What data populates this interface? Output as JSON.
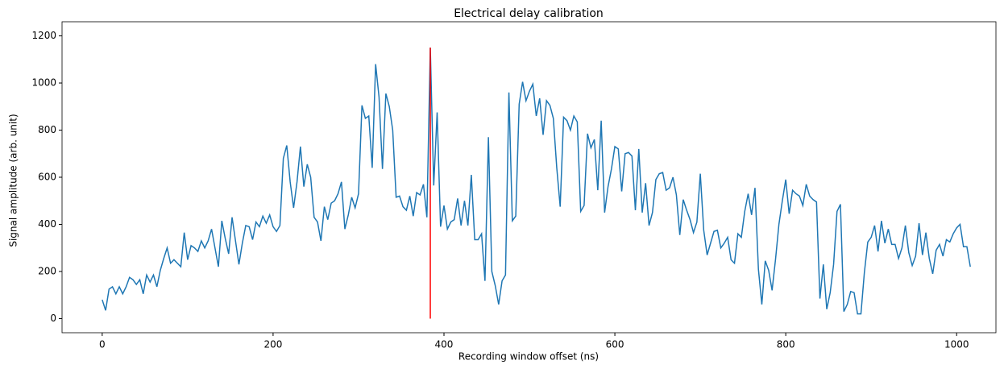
{
  "chart_data": {
    "type": "line",
    "title": "Electrical delay calibration",
    "xlabel": "Recording window offset (ns)",
    "ylabel": "Signal amplitude (arb. unit)",
    "xlim": [
      -47,
      1046
    ],
    "ylim": [
      -60,
      1260
    ],
    "xticks": [
      0,
      200,
      400,
      600,
      800,
      1000
    ],
    "yticks": [
      0,
      200,
      400,
      600,
      800,
      1000,
      1200
    ],
    "grid": false,
    "marker_line": {
      "x": 384,
      "ymin": 0,
      "ymax": 1150,
      "color": "#ff0000"
    },
    "series": [
      {
        "color": "#1f77b4",
        "x": [
          0,
          4,
          8,
          12,
          16,
          20,
          24,
          28,
          32,
          36,
          40,
          44,
          48,
          52,
          56,
          60,
          64,
          68,
          72,
          76,
          80,
          84,
          88,
          92,
          96,
          100,
          104,
          108,
          112,
          116,
          120,
          124,
          128,
          132,
          136,
          140,
          144,
          148,
          152,
          156,
          160,
          164,
          168,
          172,
          176,
          180,
          184,
          188,
          192,
          196,
          200,
          204,
          208,
          212,
          216,
          220,
          224,
          228,
          232,
          236,
          240,
          244,
          248,
          252,
          256,
          260,
          264,
          268,
          272,
          276,
          280,
          284,
          288,
          292,
          296,
          300,
          304,
          308,
          312,
          316,
          320,
          324,
          328,
          332,
          336,
          340,
          344,
          348,
          352,
          356,
          360,
          364,
          368,
          372,
          376,
          380,
          384,
          388,
          392,
          396,
          400,
          404,
          408,
          412,
          416,
          420,
          424,
          428,
          432,
          436,
          440,
          444,
          448,
          452,
          456,
          460,
          464,
          468,
          472,
          476,
          480,
          484,
          488,
          492,
          496,
          500,
          504,
          508,
          512,
          516,
          520,
          524,
          528,
          532,
          536,
          540,
          544,
          548,
          552,
          556,
          560,
          564,
          568,
          572,
          576,
          580,
          584,
          588,
          592,
          596,
          600,
          604,
          608,
          612,
          616,
          620,
          624,
          628,
          632,
          636,
          640,
          644,
          648,
          652,
          656,
          660,
          664,
          668,
          672,
          676,
          680,
          684,
          688,
          692,
          696,
          700,
          704,
          708,
          712,
          716,
          720,
          724,
          728,
          732,
          736,
          740,
          744,
          748,
          752,
          756,
          760,
          764,
          768,
          772,
          776,
          780,
          784,
          788,
          792,
          796,
          800,
          804,
          808,
          812,
          816,
          820,
          824,
          828,
          832,
          836,
          840,
          844,
          848,
          852,
          856,
          860,
          864,
          868,
          872,
          876,
          880,
          884,
          888,
          892,
          896,
          900,
          904,
          908,
          912,
          916,
          920,
          924,
          928,
          932,
          936,
          940,
          944,
          948,
          952,
          956,
          960,
          964,
          968,
          972,
          976,
          980,
          984,
          988,
          992,
          996,
          1000,
          1004,
          1008,
          1012,
          1016
        ],
        "values": [
          80,
          35,
          125,
          135,
          105,
          135,
          105,
          135,
          175,
          165,
          145,
          165,
          105,
          185,
          155,
          185,
          135,
          205,
          255,
          300,
          235,
          250,
          235,
          220,
          365,
          250,
          310,
          300,
          285,
          330,
          300,
          330,
          380,
          300,
          220,
          415,
          340,
          275,
          430,
          330,
          230,
          320,
          395,
          390,
          335,
          410,
          390,
          435,
          405,
          440,
          390,
          370,
          395,
          680,
          735,
          580,
          470,
          580,
          730,
          560,
          655,
          600,
          430,
          410,
          330,
          475,
          420,
          490,
          500,
          530,
          580,
          380,
          440,
          515,
          470,
          530,
          905,
          850,
          860,
          640,
          1080,
          940,
          635,
          955,
          900,
          800,
          515,
          520,
          475,
          460,
          520,
          435,
          535,
          525,
          570,
          430,
          1150,
          565,
          875,
          390,
          480,
          380,
          410,
          420,
          510,
          395,
          500,
          395,
          610,
          335,
          335,
          360,
          160,
          770,
          200,
          140,
          60,
          160,
          185,
          960,
          415,
          435,
          910,
          1005,
          925,
          965,
          995,
          860,
          935,
          780,
          925,
          905,
          850,
          640,
          475,
          855,
          840,
          800,
          860,
          835,
          455,
          480,
          785,
          725,
          760,
          545,
          840,
          450,
          560,
          635,
          730,
          720,
          540,
          700,
          705,
          690,
          460,
          720,
          450,
          575,
          395,
          450,
          590,
          615,
          620,
          545,
          555,
          600,
          525,
          355,
          505,
          460,
          420,
          365,
          410,
          615,
          375,
          270,
          320,
          370,
          375,
          300,
          320,
          345,
          250,
          235,
          360,
          345,
          455,
          530,
          440,
          555,
          210,
          60,
          245,
          205,
          120,
          250,
          400,
          500,
          590,
          445,
          545,
          530,
          520,
          480,
          570,
          520,
          505,
          495,
          85,
          230,
          40,
          110,
          230,
          455,
          485,
          30,
          60,
          115,
          110,
          20,
          20,
          195,
          325,
          345,
          395,
          285,
          415,
          320,
          380,
          315,
          315,
          255,
          300,
          395,
          280,
          225,
          265,
          405,
          270,
          365,
          255,
          190,
          290,
          315,
          265,
          335,
          325,
          360,
          385,
          400,
          305,
          305,
          220
        ]
      }
    ]
  }
}
